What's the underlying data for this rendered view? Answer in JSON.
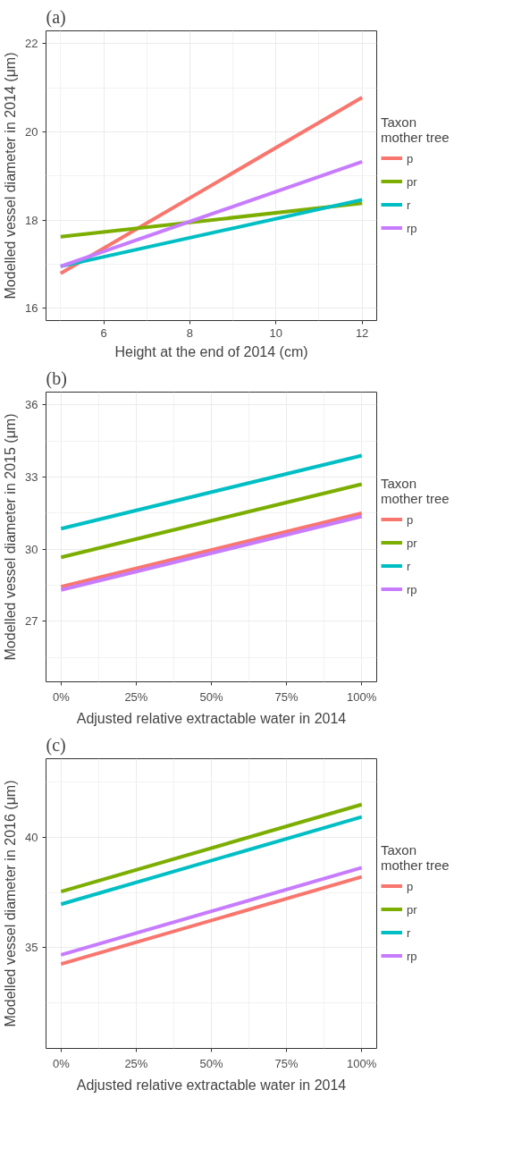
{
  "chart_data": [
    {
      "type": "line",
      "title": "(a)",
      "xlabel": "Height at the end of 2014 (cm)",
      "ylabel": "Modelled vessel diameter in 2014 (μm)",
      "legend_title": "Taxon\nmother tree",
      "legend": "right",
      "grid": true,
      "marker": "none",
      "line_style": "solid",
      "xlim": [
        4.66,
        12.34
      ],
      "xticks": [
        6,
        8,
        10,
        12
      ],
      "ylim": [
        15.72,
        22.29
      ],
      "yticks": [
        16,
        18,
        20,
        22
      ],
      "series": [
        {
          "name": "p",
          "color": "#f8766d",
          "x": [
            5,
            12
          ],
          "values": [
            16.79,
            20.78
          ]
        },
        {
          "name": "pr",
          "color": "#7cae00",
          "x": [
            5,
            12
          ],
          "values": [
            17.62,
            18.38
          ]
        },
        {
          "name": "r",
          "color": "#00bfc4",
          "x": [
            5,
            12
          ],
          "values": [
            16.95,
            18.46
          ]
        },
        {
          "name": "rp",
          "color": "#c77cff",
          "x": [
            5,
            12
          ],
          "values": [
            16.95,
            19.32
          ]
        }
      ]
    },
    {
      "type": "line",
      "title": "(b)",
      "xlabel": "Adjusted relative extractable water in 2014",
      "ylabel": "Modelled vessel diameter in 2015 (μm)",
      "legend_title": "Taxon\nmother tree",
      "legend": "right",
      "grid": true,
      "marker": "none",
      "line_style": "solid",
      "xlim": [
        -5,
        105
      ],
      "xticks": [
        {
          "value": 0,
          "label": "0%"
        },
        {
          "value": 25,
          "label": "25%"
        },
        {
          "value": 50,
          "label": "50%"
        },
        {
          "value": 75,
          "label": "75%"
        },
        {
          "value": 100,
          "label": "100%"
        }
      ],
      "ylim": [
        24.48,
        36.53
      ],
      "yticks": [
        27,
        30,
        33,
        36
      ],
      "series": [
        {
          "name": "p",
          "color": "#f8766d",
          "x": [
            0,
            100
          ],
          "values": [
            28.43,
            31.49
          ]
        },
        {
          "name": "pr",
          "color": "#7cae00",
          "x": [
            0,
            100
          ],
          "values": [
            29.66,
            32.7
          ]
        },
        {
          "name": "r",
          "color": "#00bfc4",
          "x": [
            0,
            100
          ],
          "values": [
            30.85,
            33.89
          ]
        },
        {
          "name": "rp",
          "color": "#c77cff",
          "x": [
            0,
            100
          ],
          "values": [
            28.3,
            31.36
          ]
        }
      ]
    },
    {
      "type": "line",
      "title": "(c)",
      "xlabel": "Adjusted relative extractable water in 2014",
      "ylabel": "Modelled vessel diameter in 2016 (μm)",
      "legend_title": "Taxon\nmother tree",
      "legend": "right",
      "grid": true,
      "marker": "none",
      "line_style": "solid",
      "xlim": [
        -5,
        105
      ],
      "xticks": [
        {
          "value": 0,
          "label": "0%"
        },
        {
          "value": 25,
          "label": "25%"
        },
        {
          "value": 50,
          "label": "50%"
        },
        {
          "value": 75,
          "label": "75%"
        },
        {
          "value": 100,
          "label": "100%"
        }
      ],
      "ylim": [
        30.43,
        43.57
      ],
      "yticks": [
        35,
        40
      ],
      "series": [
        {
          "name": "p",
          "color": "#f8766d",
          "x": [
            0,
            100
          ],
          "values": [
            34.26,
            38.21
          ]
        },
        {
          "name": "pr",
          "color": "#7cae00",
          "x": [
            0,
            100
          ],
          "values": [
            37.54,
            41.49
          ]
        },
        {
          "name": "r",
          "color": "#00bfc4",
          "x": [
            0,
            100
          ],
          "values": [
            36.97,
            40.93
          ]
        },
        {
          "name": "rp",
          "color": "#c77cff",
          "x": [
            0,
            100
          ],
          "values": [
            34.67,
            38.63
          ]
        }
      ]
    }
  ]
}
